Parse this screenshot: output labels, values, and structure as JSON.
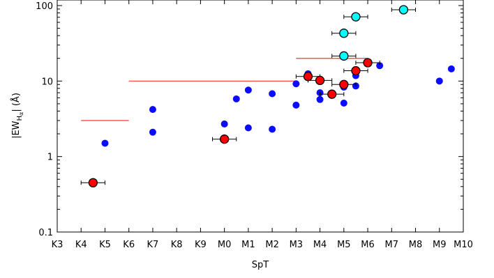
{
  "chart_data": {
    "type": "scatter",
    "title": "",
    "xlabel": "SpT",
    "ylabel_main": "|EW",
    "ylabel_sub_h": "H",
    "ylabel_sub_alpha": "α",
    "ylabel_tail": "| (Å)",
    "y_scale": "log",
    "ylim": [
      0.1,
      130
    ],
    "y_ticks": [
      {
        "value": 0.1,
        "label": "0.1"
      },
      {
        "value": 1,
        "label": "1"
      },
      {
        "value": 10,
        "label": "10"
      },
      {
        "value": 100,
        "label": "100"
      }
    ],
    "x_categories": [
      "K3",
      "K4",
      "K5",
      "K6",
      "K7",
      "K8",
      "K9",
      "M0",
      "M1",
      "M2",
      "M3",
      "M4",
      "M5",
      "M6",
      "M7",
      "M8",
      "M9",
      "M10"
    ],
    "xlim": [
      0,
      17
    ],
    "grid": false,
    "legend": "none",
    "colors": {
      "blue_points": "#0b0bff",
      "red_points": "#ff0000",
      "cyan_points": "#00ffff",
      "threshold_lines": "#ff3333",
      "marker_edge": "#000000"
    },
    "threshold_lines": [
      {
        "x_start": 1,
        "x_end": 3,
        "y": 3
      },
      {
        "x_start": 3,
        "x_end": 10,
        "y": 10
      },
      {
        "x_start": 10,
        "x_end": 13,
        "y": 20
      }
    ],
    "series": [
      {
        "style": "blue",
        "points": [
          {
            "x": 2,
            "y": 1.5
          },
          {
            "x": 4,
            "y": 4.2
          },
          {
            "x": 4,
            "y": 2.1
          },
          {
            "x": 7,
            "y": 2.7
          },
          {
            "x": 7.5,
            "y": 5.8
          },
          {
            "x": 8,
            "y": 7.6
          },
          {
            "x": 8,
            "y": 2.4
          },
          {
            "x": 9,
            "y": 6.8
          },
          {
            "x": 9,
            "y": 2.3
          },
          {
            "x": 10,
            "y": 9.2
          },
          {
            "x": 10,
            "y": 4.8
          },
          {
            "x": 10.5,
            "y": 12.5
          },
          {
            "x": 11,
            "y": 7.0
          },
          {
            "x": 11,
            "y": 5.7
          },
          {
            "x": 12,
            "y": 8.3
          },
          {
            "x": 12,
            "y": 5.1
          },
          {
            "x": 12.5,
            "y": 11.8
          },
          {
            "x": 12.5,
            "y": 8.6
          },
          {
            "x": 13.5,
            "y": 16
          },
          {
            "x": 16,
            "y": 10
          },
          {
            "x": 16.5,
            "y": 14.5
          }
        ]
      },
      {
        "style": "red",
        "points": [
          {
            "x": 1.5,
            "y": 0.45,
            "xerr": 0.5
          },
          {
            "x": 7,
            "y": 1.7,
            "xerr": 0.5
          },
          {
            "x": 10.5,
            "y": 11.5,
            "xerr": 0.5
          },
          {
            "x": 11,
            "y": 10.2,
            "xerr": 0.5
          },
          {
            "x": 11.5,
            "y": 6.7,
            "xerr": 0.5
          },
          {
            "x": 12,
            "y": 9.0,
            "xerr": 0.5
          },
          {
            "x": 12.5,
            "y": 13.7,
            "xerr": 0.5
          },
          {
            "x": 13,
            "y": 17.5,
            "xerr": 0.5
          }
        ]
      },
      {
        "style": "cyan",
        "points": [
          {
            "x": 12,
            "y": 21.5,
            "xerr": 0.5
          },
          {
            "x": 12,
            "y": 43,
            "xerr": 0.5
          },
          {
            "x": 12.5,
            "y": 71,
            "xerr": 0.5
          },
          {
            "x": 14.5,
            "y": 88,
            "xerr": 0.5
          }
        ]
      }
    ]
  }
}
